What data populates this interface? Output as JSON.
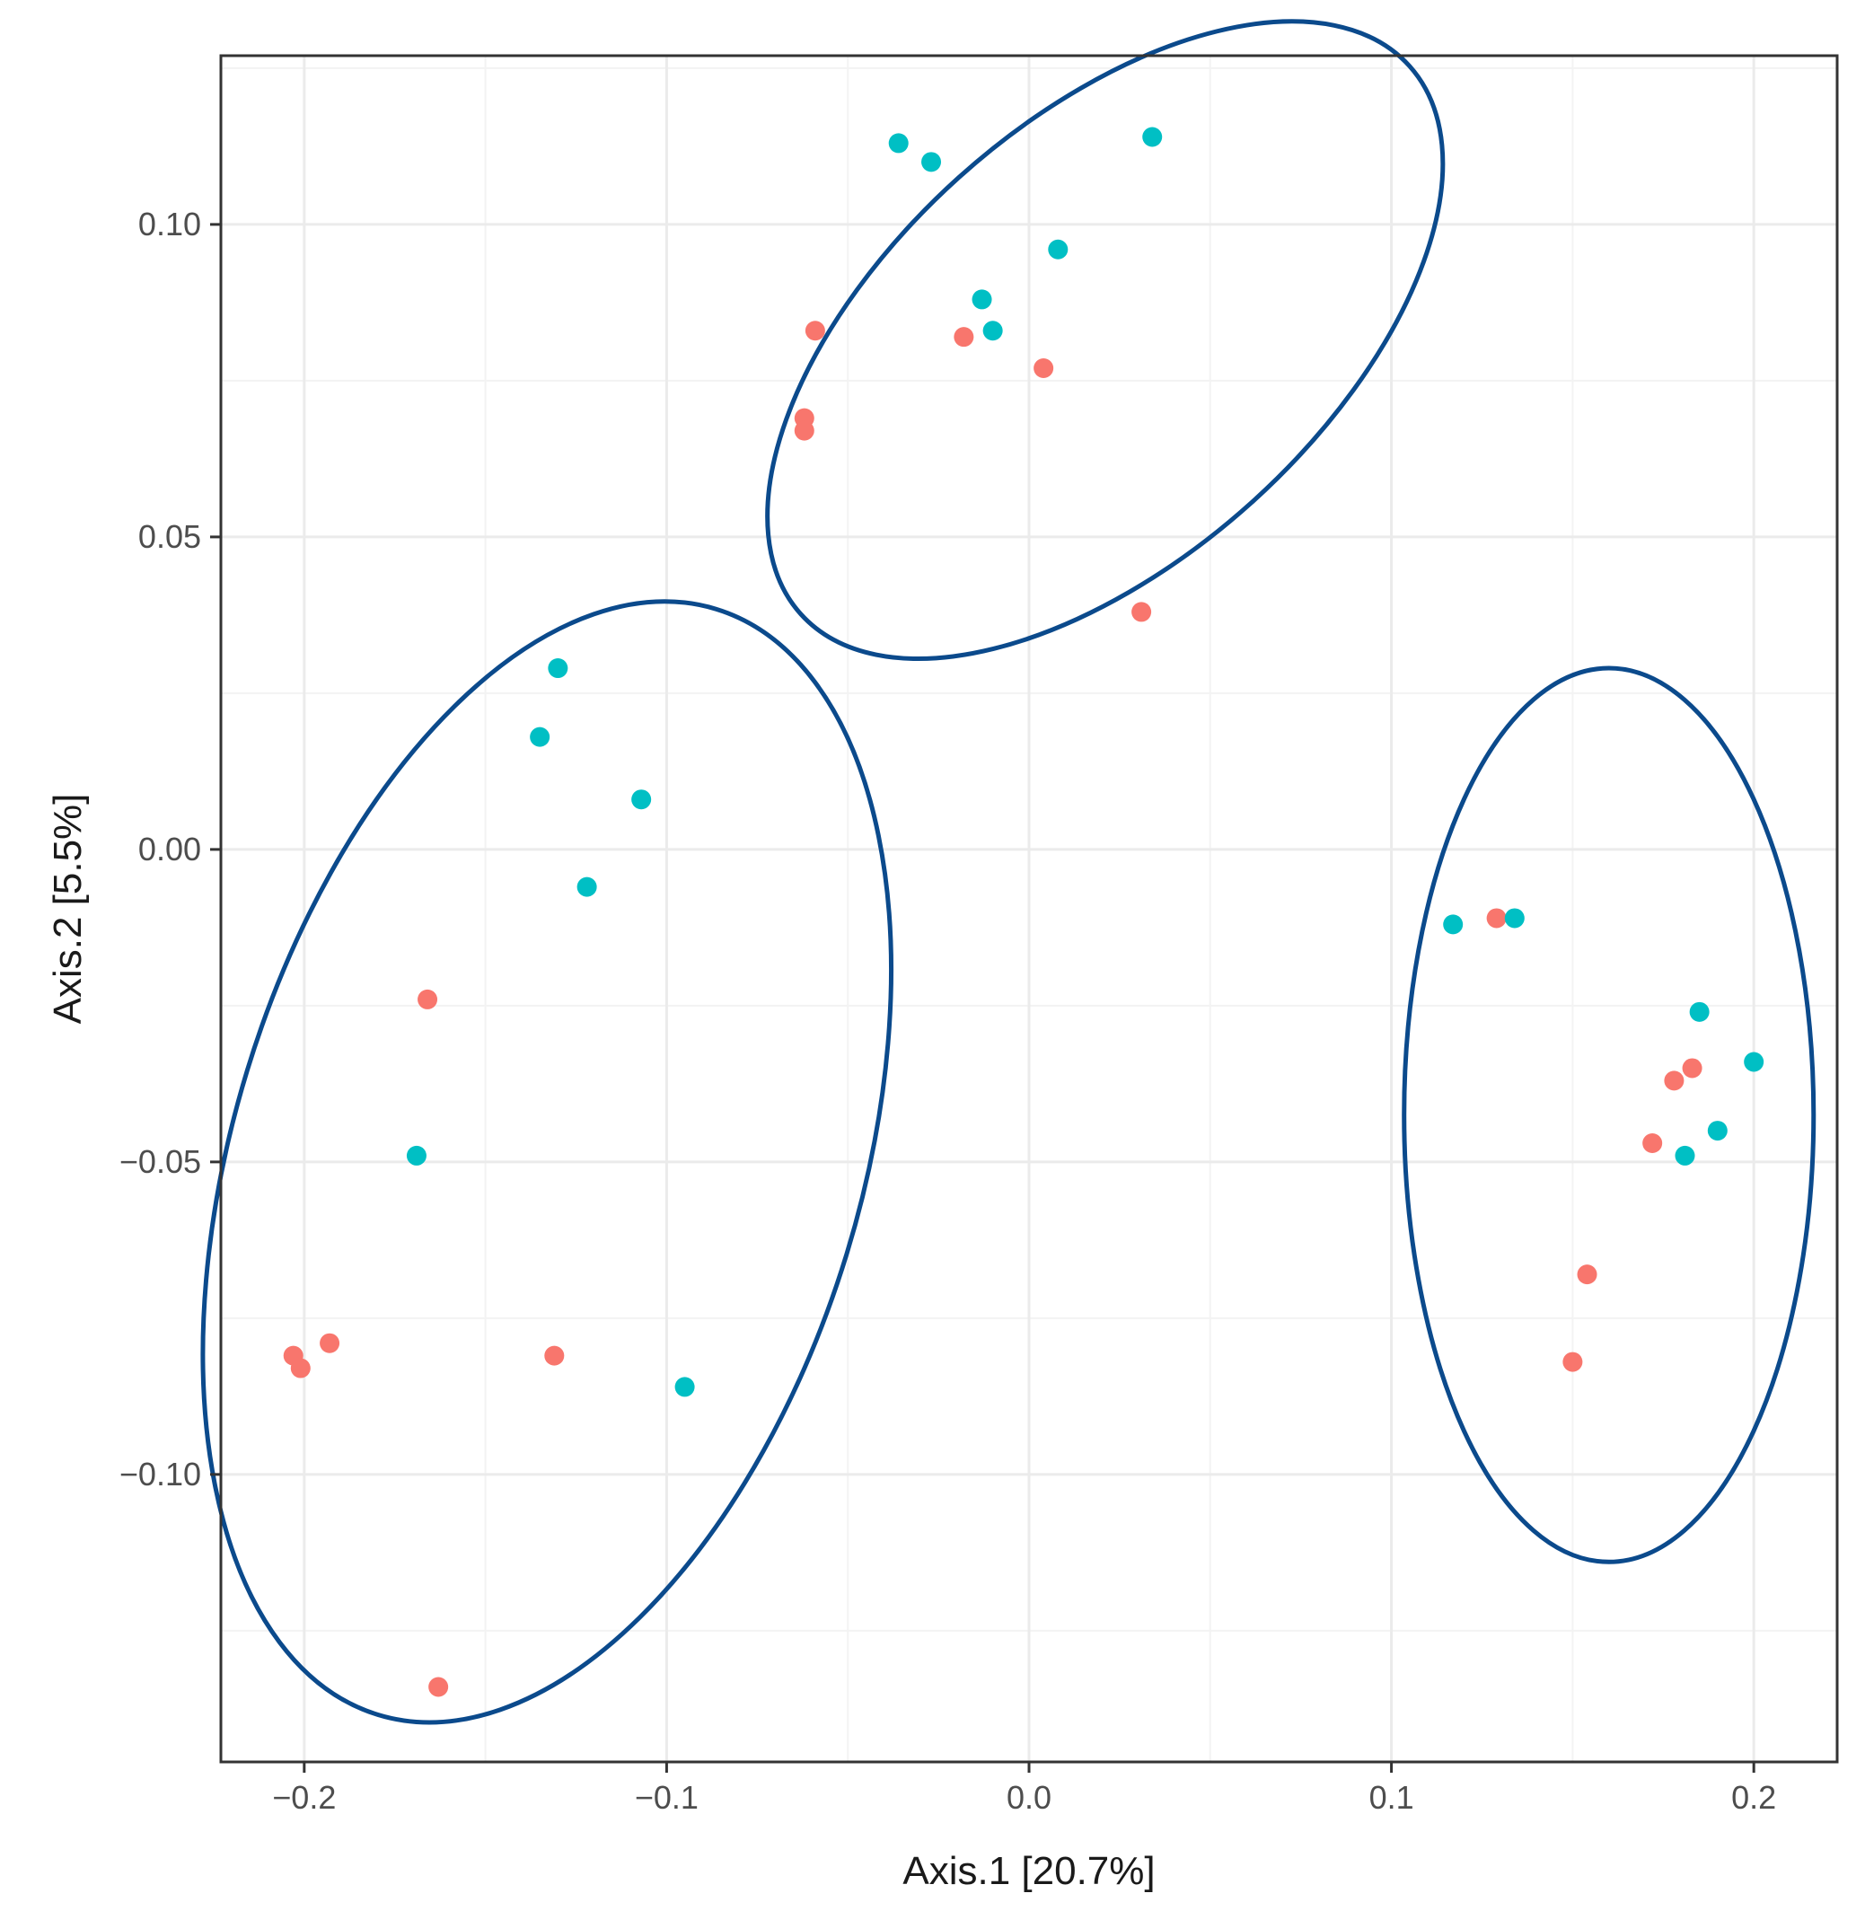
{
  "chart_data": {
    "type": "scatter",
    "title": "",
    "xlabel": "Axis.1   [20.7%]",
    "ylabel": "Axis.2   [5.5%]",
    "xlim": [
      -0.223,
      0.223
    ],
    "ylim": [
      -0.146,
      0.127
    ],
    "x_ticks": [
      -0.2,
      -0.1,
      0.0,
      0.1,
      0.2
    ],
    "x_tick_labels": [
      "−0.2",
      "−0.1",
      "0.0",
      "0.1",
      "0.2"
    ],
    "y_ticks": [
      -0.1,
      -0.05,
      0.0,
      0.05,
      0.1
    ],
    "y_tick_labels": [
      "−0.10",
      "−0.05",
      "0.00",
      "0.05",
      "0.10"
    ],
    "grid": true,
    "legend": "none",
    "colors": {
      "series_a": "#F8766D",
      "series_b": "#00BFC4",
      "ellipse": "#0B4A8C",
      "border": "#333333"
    },
    "series": [
      {
        "name": "red",
        "color": "#F8766D",
        "points": [
          {
            "x": -0.059,
            "y": 0.083
          },
          {
            "x": -0.018,
            "y": 0.082
          },
          {
            "x": 0.004,
            "y": 0.077
          },
          {
            "x": -0.062,
            "y": 0.069
          },
          {
            "x": -0.062,
            "y": 0.067
          },
          {
            "x": 0.031,
            "y": 0.038
          },
          {
            "x": -0.166,
            "y": -0.024
          },
          {
            "x": -0.203,
            "y": -0.081
          },
          {
            "x": -0.201,
            "y": -0.083
          },
          {
            "x": -0.193,
            "y": -0.079
          },
          {
            "x": -0.131,
            "y": -0.081
          },
          {
            "x": -0.163,
            "y": -0.134
          },
          {
            "x": 0.129,
            "y": -0.011
          },
          {
            "x": 0.183,
            "y": -0.035
          },
          {
            "x": 0.178,
            "y": -0.037
          },
          {
            "x": 0.172,
            "y": -0.047
          },
          {
            "x": 0.154,
            "y": -0.068
          },
          {
            "x": 0.15,
            "y": -0.082
          }
        ]
      },
      {
        "name": "cyan",
        "color": "#00BFC4",
        "points": [
          {
            "x": -0.036,
            "y": 0.113
          },
          {
            "x": -0.027,
            "y": 0.11
          },
          {
            "x": 0.034,
            "y": 0.114
          },
          {
            "x": 0.008,
            "y": 0.096
          },
          {
            "x": -0.013,
            "y": 0.088
          },
          {
            "x": -0.01,
            "y": 0.083
          },
          {
            "x": -0.13,
            "y": 0.029
          },
          {
            "x": -0.135,
            "y": 0.018
          },
          {
            "x": -0.107,
            "y": 0.008
          },
          {
            "x": -0.122,
            "y": -0.006
          },
          {
            "x": -0.169,
            "y": -0.049
          },
          {
            "x": -0.095,
            "y": -0.086
          },
          {
            "x": 0.117,
            "y": -0.012
          },
          {
            "x": 0.134,
            "y": -0.011
          },
          {
            "x": 0.185,
            "y": -0.026
          },
          {
            "x": 0.2,
            "y": -0.034
          },
          {
            "x": 0.19,
            "y": -0.045
          },
          {
            "x": 0.181,
            "y": -0.049
          }
        ]
      }
    ],
    "ellipses": [
      {
        "name": "ellipse-top",
        "cx": 0.021,
        "cy": 0.0815,
        "rx": 0.113,
        "ry": 0.035,
        "angle_deg": -42
      },
      {
        "name": "ellipse-left",
        "cx": -0.133,
        "cy": -0.05,
        "rx": 0.0865,
        "ry": 0.0925,
        "angle_deg": 17
      },
      {
        "name": "ellipse-right",
        "cx": 0.16,
        "cy": -0.0425,
        "rx": 0.0565,
        "ry": 0.0715,
        "angle_deg": 0
      }
    ]
  }
}
